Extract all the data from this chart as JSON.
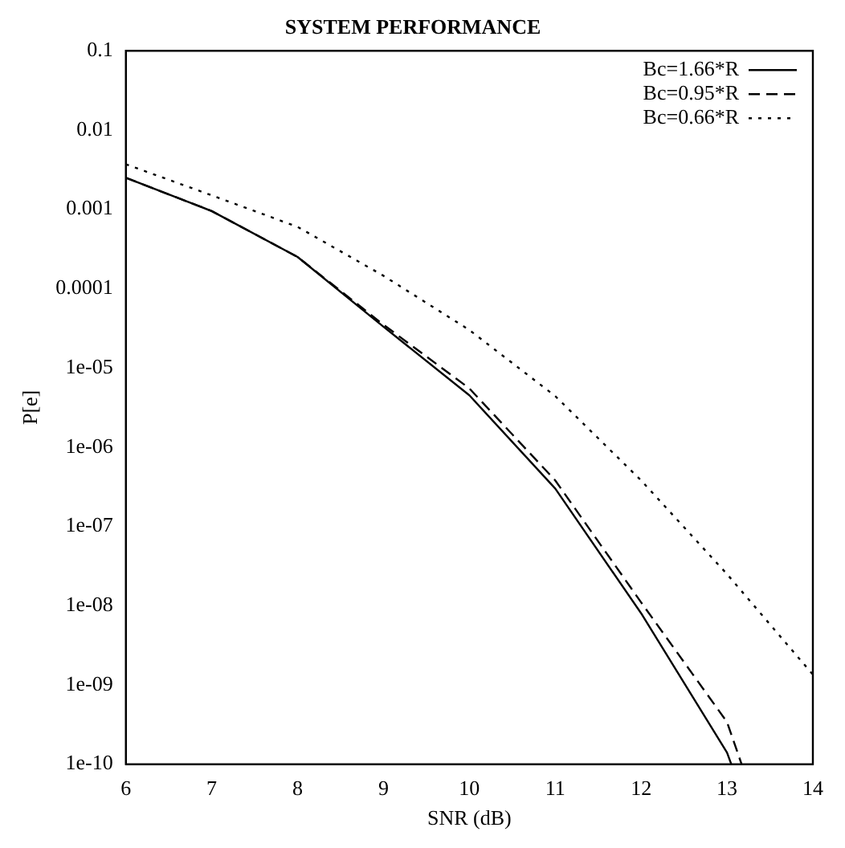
{
  "chart_data": {
    "type": "line",
    "title": "SYSTEM PERFORMANCE",
    "xlabel": "SNR (dB)",
    "ylabel": "P[e]",
    "log": "y",
    "grid": false,
    "legend": "top right",
    "marker": "none",
    "xlim": [
      6,
      14
    ],
    "xticks": [
      6,
      7,
      8,
      9,
      10,
      11,
      12,
      13,
      14
    ],
    "ylim": [
      1e-10,
      0.1
    ],
    "yticks": [
      0.1,
      0.01,
      0.001,
      0.0001,
      {
        "value": 1e-05,
        "label": "1e-05"
      },
      {
        "value": 1e-06,
        "label": "1e-06"
      },
      {
        "value": 1e-07,
        "label": "1e-07"
      },
      {
        "value": 1e-08,
        "label": "1e-08"
      },
      {
        "value": 1e-09,
        "label": "1e-09"
      },
      {
        "value": 1e-10,
        "label": "1e-10"
      }
    ],
    "series": [
      {
        "name": "Bc=1.66*R",
        "color": "#000000",
        "line_style": "solid",
        "x": [
          6,
          7,
          8,
          9,
          10,
          11,
          12,
          13,
          13.05
        ],
        "values": [
          0.0025,
          0.00095,
          0.00025,
          3.3e-05,
          4.5e-06,
          3e-07,
          8e-09,
          1.4e-10,
          1e-10
        ]
      },
      {
        "name": "Bc=0.95*R",
        "color": "#000000",
        "line_style": "dashed",
        "x": [
          6,
          7,
          8,
          9,
          10,
          11,
          12,
          13,
          13.17
        ],
        "values": [
          0.0025,
          0.00095,
          0.00025,
          3.5e-05,
          5.5e-06,
          3.8e-07,
          1.1e-08,
          3.4e-10,
          1e-10
        ]
      },
      {
        "name": "Bc=0.66*R",
        "color": "#000000",
        "line_style": "dotted",
        "x": [
          6,
          7,
          8,
          9,
          10,
          11,
          12,
          13,
          14
        ],
        "values": [
          0.0037,
          0.0015,
          0.0006,
          0.000145,
          3e-05,
          4.4e-06,
          3.8e-07,
          2.5e-08,
          1.35e-09
        ]
      }
    ]
  }
}
